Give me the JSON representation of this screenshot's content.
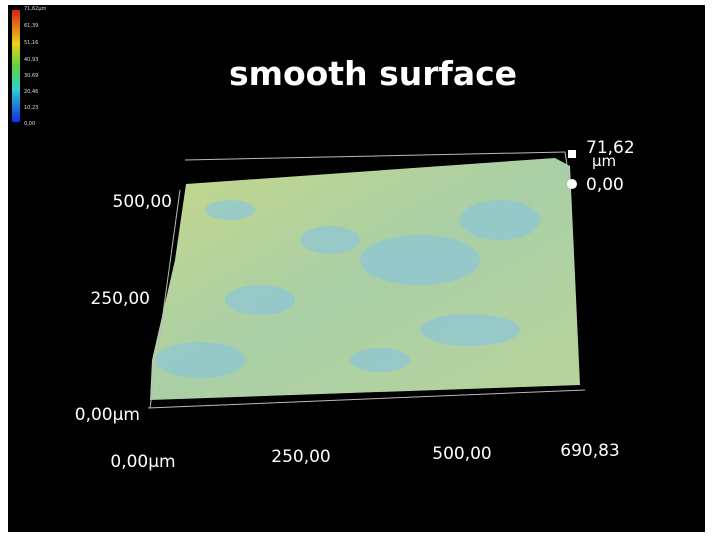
{
  "title": "smooth surface",
  "color_scale": {
    "labels": [
      "71,62µm",
      "61,39",
      "51,16",
      "40,93",
      "30,69",
      "20,46",
      "10,23",
      "0,00"
    ]
  },
  "z_axis": {
    "max": "71,62",
    "unit": "µm",
    "min": "0,00"
  },
  "y_axis": {
    "ticks": [
      "500,00",
      "250,00",
      "0,00µm"
    ]
  },
  "x_axis": {
    "ticks": [
      "0,00µm",
      "250,00",
      "500,00",
      "690,83"
    ]
  }
}
